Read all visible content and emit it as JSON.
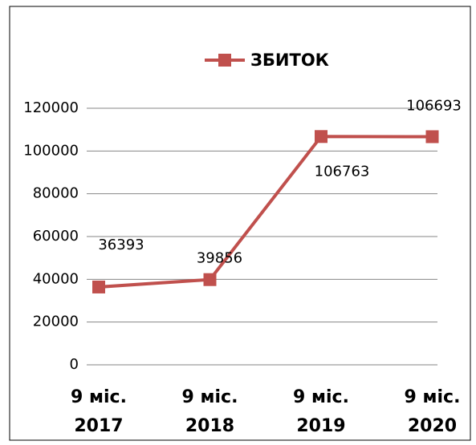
{
  "chart_data": {
    "type": "line",
    "categories": [
      "9 міс. 2017",
      "9 міс. 2018",
      "9 міс. 2019",
      "9 міс. 2020"
    ],
    "series": [
      {
        "name": "ЗБИТОК",
        "color": "#c0504d",
        "values": [
          36393,
          39856,
          106763,
          106693
        ]
      }
    ],
    "ylim": [
      0,
      120000
    ],
    "yticks": [
      0,
      20000,
      40000,
      60000,
      80000,
      100000,
      120000
    ],
    "grid": true,
    "legend": "top"
  }
}
